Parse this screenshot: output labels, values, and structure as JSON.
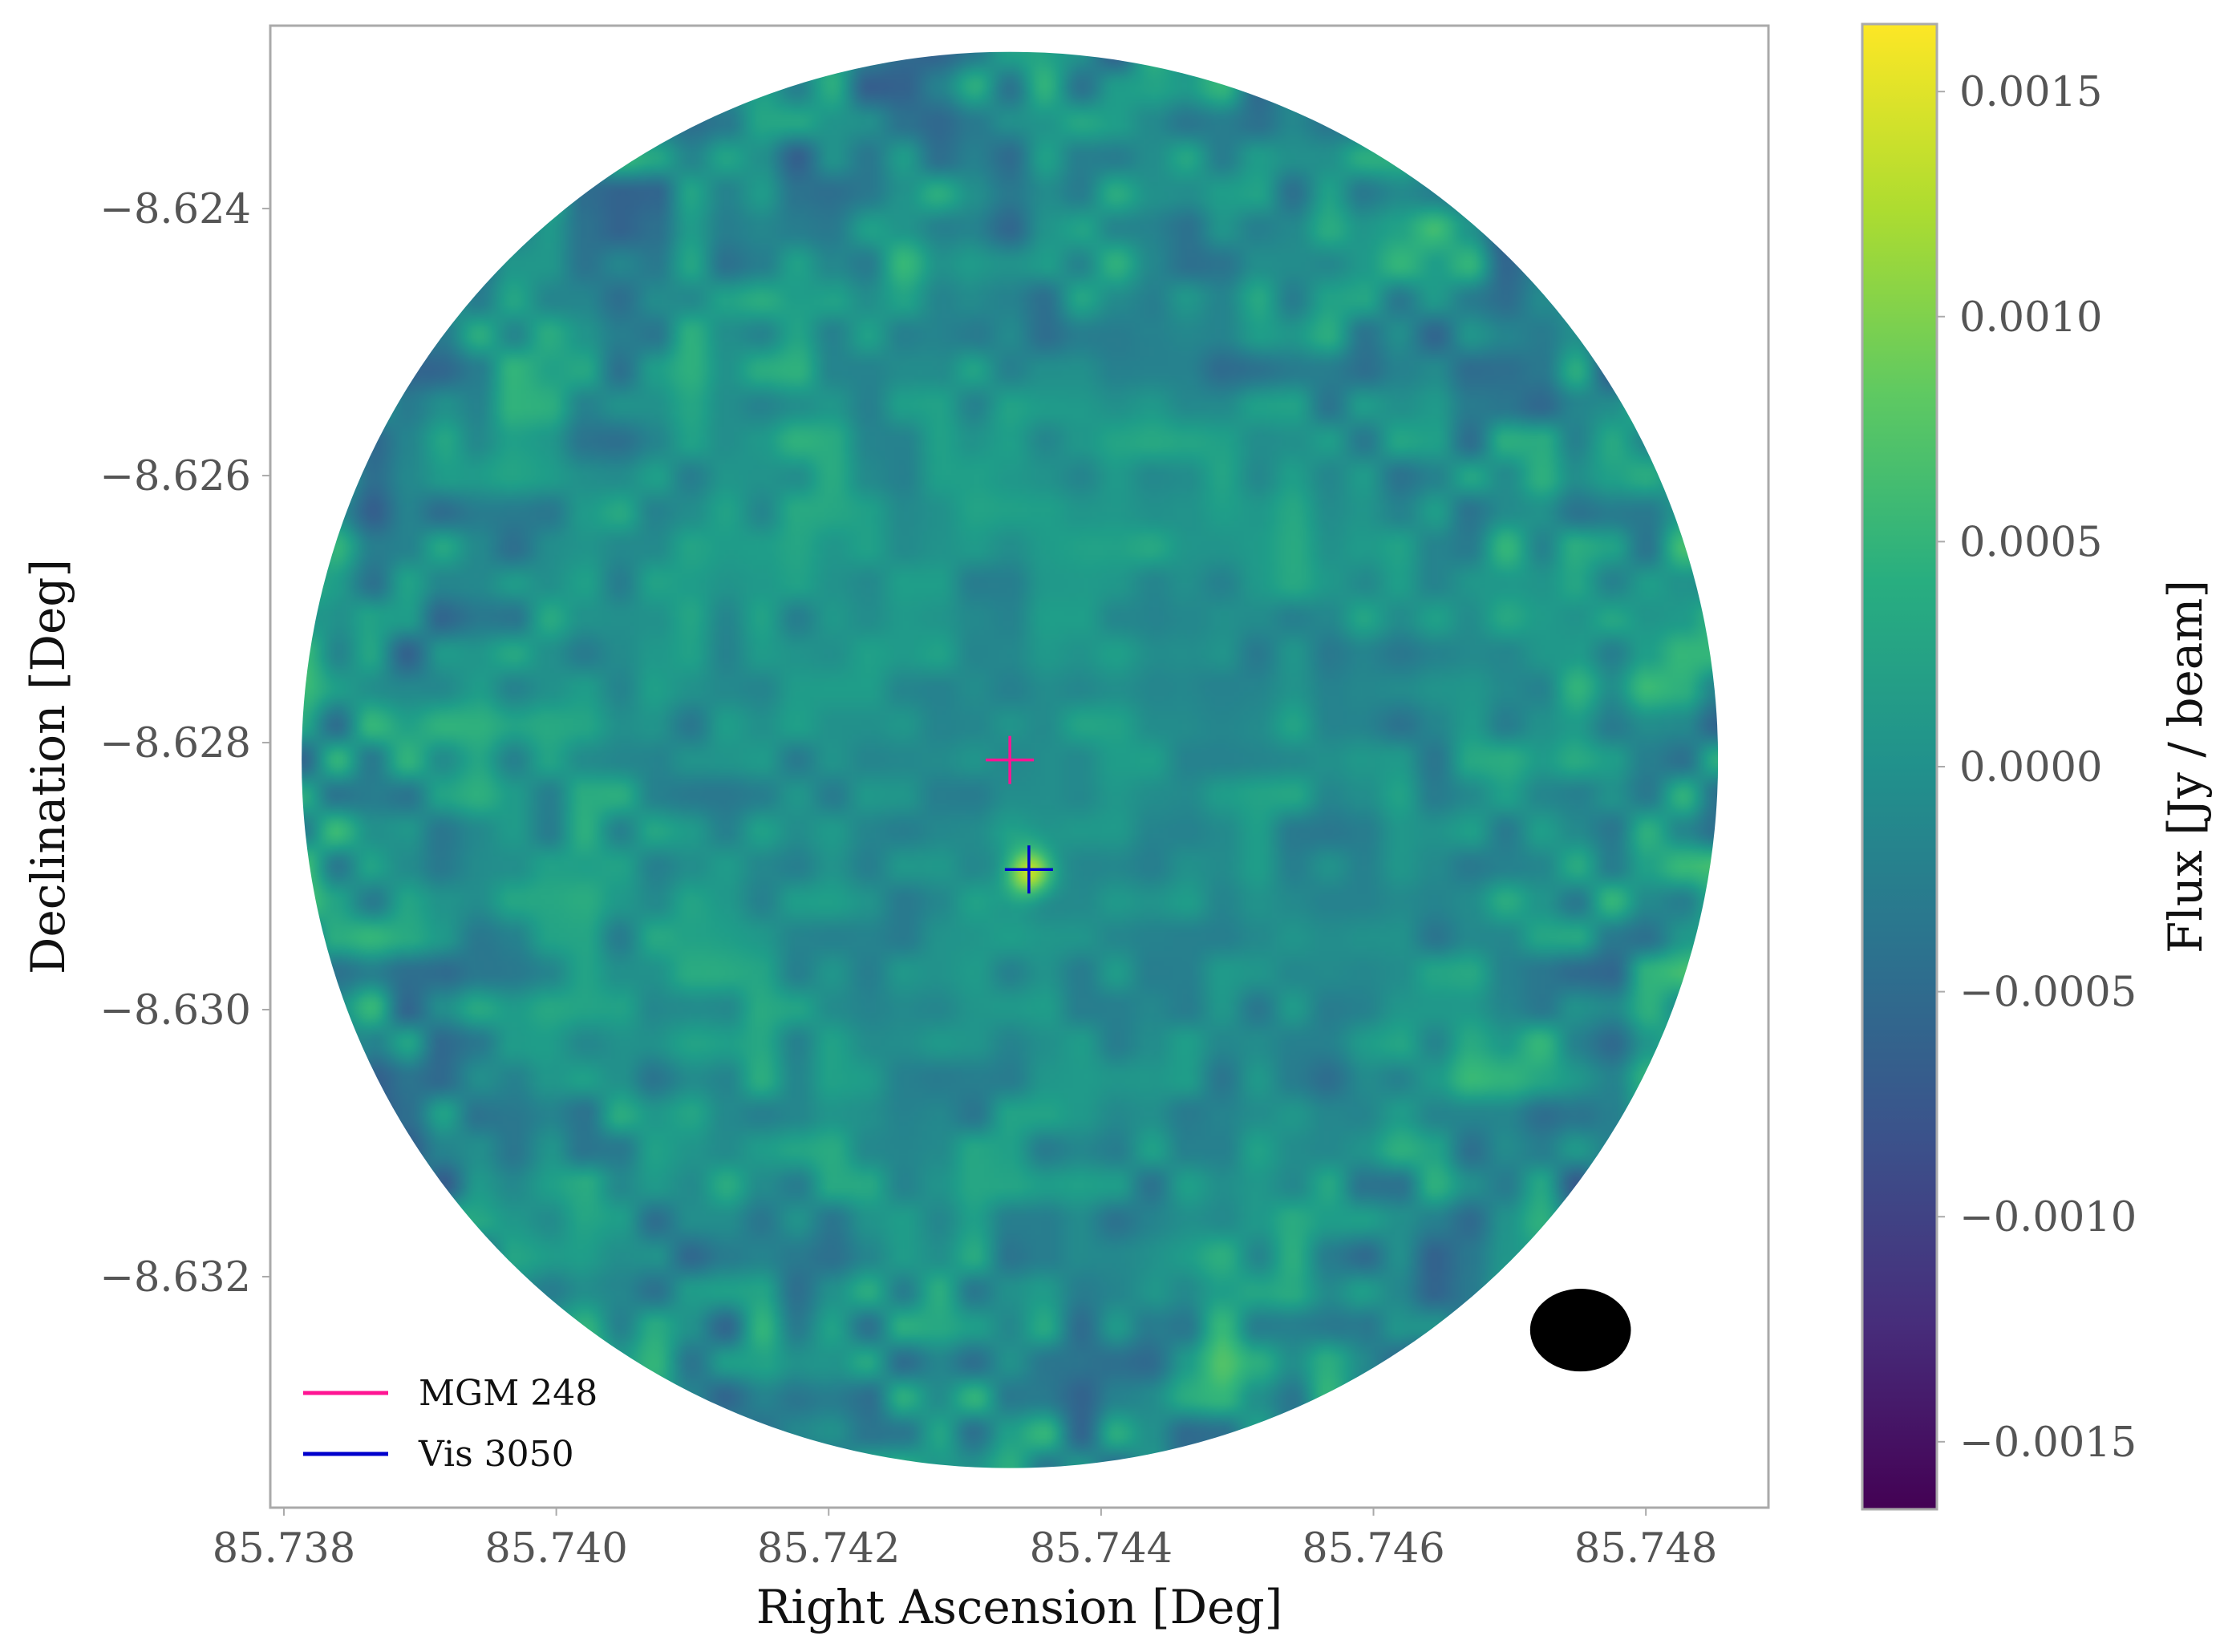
{
  "chart_data": {
    "type": "heatmap",
    "title": "",
    "xlabel": "Right Ascension [Deg]",
    "ylabel": "Declination [Deg]",
    "xlim": [
      85.7379,
      85.7489
    ],
    "ylim": [
      -8.63373,
      -8.62263
    ],
    "x_ticks": [
      85.738,
      85.74,
      85.742,
      85.744,
      85.746,
      85.748
    ],
    "x_tick_labels": [
      "85.738",
      "85.740",
      "85.742",
      "85.744",
      "85.746",
      "85.748"
    ],
    "y_ticks": [
      -8.624,
      -8.626,
      -8.628,
      -8.63,
      -8.632
    ],
    "y_tick_labels": [
      "−8.624",
      "−8.626",
      "−8.628",
      "−8.630",
      "−8.632"
    ],
    "grid": false,
    "image": {
      "shape": "circular primary-beam field",
      "center": [
        85.74333,
        -8.62813
      ],
      "radius_deg": 0.0052,
      "peak": {
        "x": 85.74347,
        "y": -8.62895,
        "flux": 0.0015
      },
      "noise_rms": 0.00025
    },
    "colorbar": {
      "label": "Flux [Jy / beam]",
      "colormap": "viridis",
      "range": [
        -0.00165,
        0.00165
      ],
      "ticks": [
        0.0015,
        0.001,
        0.0005,
        0,
        -0.0005,
        -0.001,
        -0.0015
      ],
      "tick_labels": [
        "0.0015",
        "0.0010",
        "0.0005",
        "0.0000",
        "−0.0005",
        "−0.0010",
        "−0.0015"
      ]
    },
    "markers": [
      {
        "name": "MGM 248",
        "x": 85.74333,
        "y": -8.62813,
        "color": "#ff1493"
      },
      {
        "name": "Vis 3050",
        "x": 85.74347,
        "y": -8.62895,
        "color": "#0000cc"
      }
    ],
    "beam": {
      "x": 85.74752,
      "y": -8.6324,
      "major_deg": 0.00037,
      "minor_deg": 0.00031,
      "color": "#000000"
    },
    "legend": {
      "position": "lower-left",
      "entries": [
        {
          "label": "MGM 248",
          "color": "#ff1493"
        },
        {
          "label": "Vis 3050",
          "color": "#0000cc"
        }
      ]
    }
  }
}
